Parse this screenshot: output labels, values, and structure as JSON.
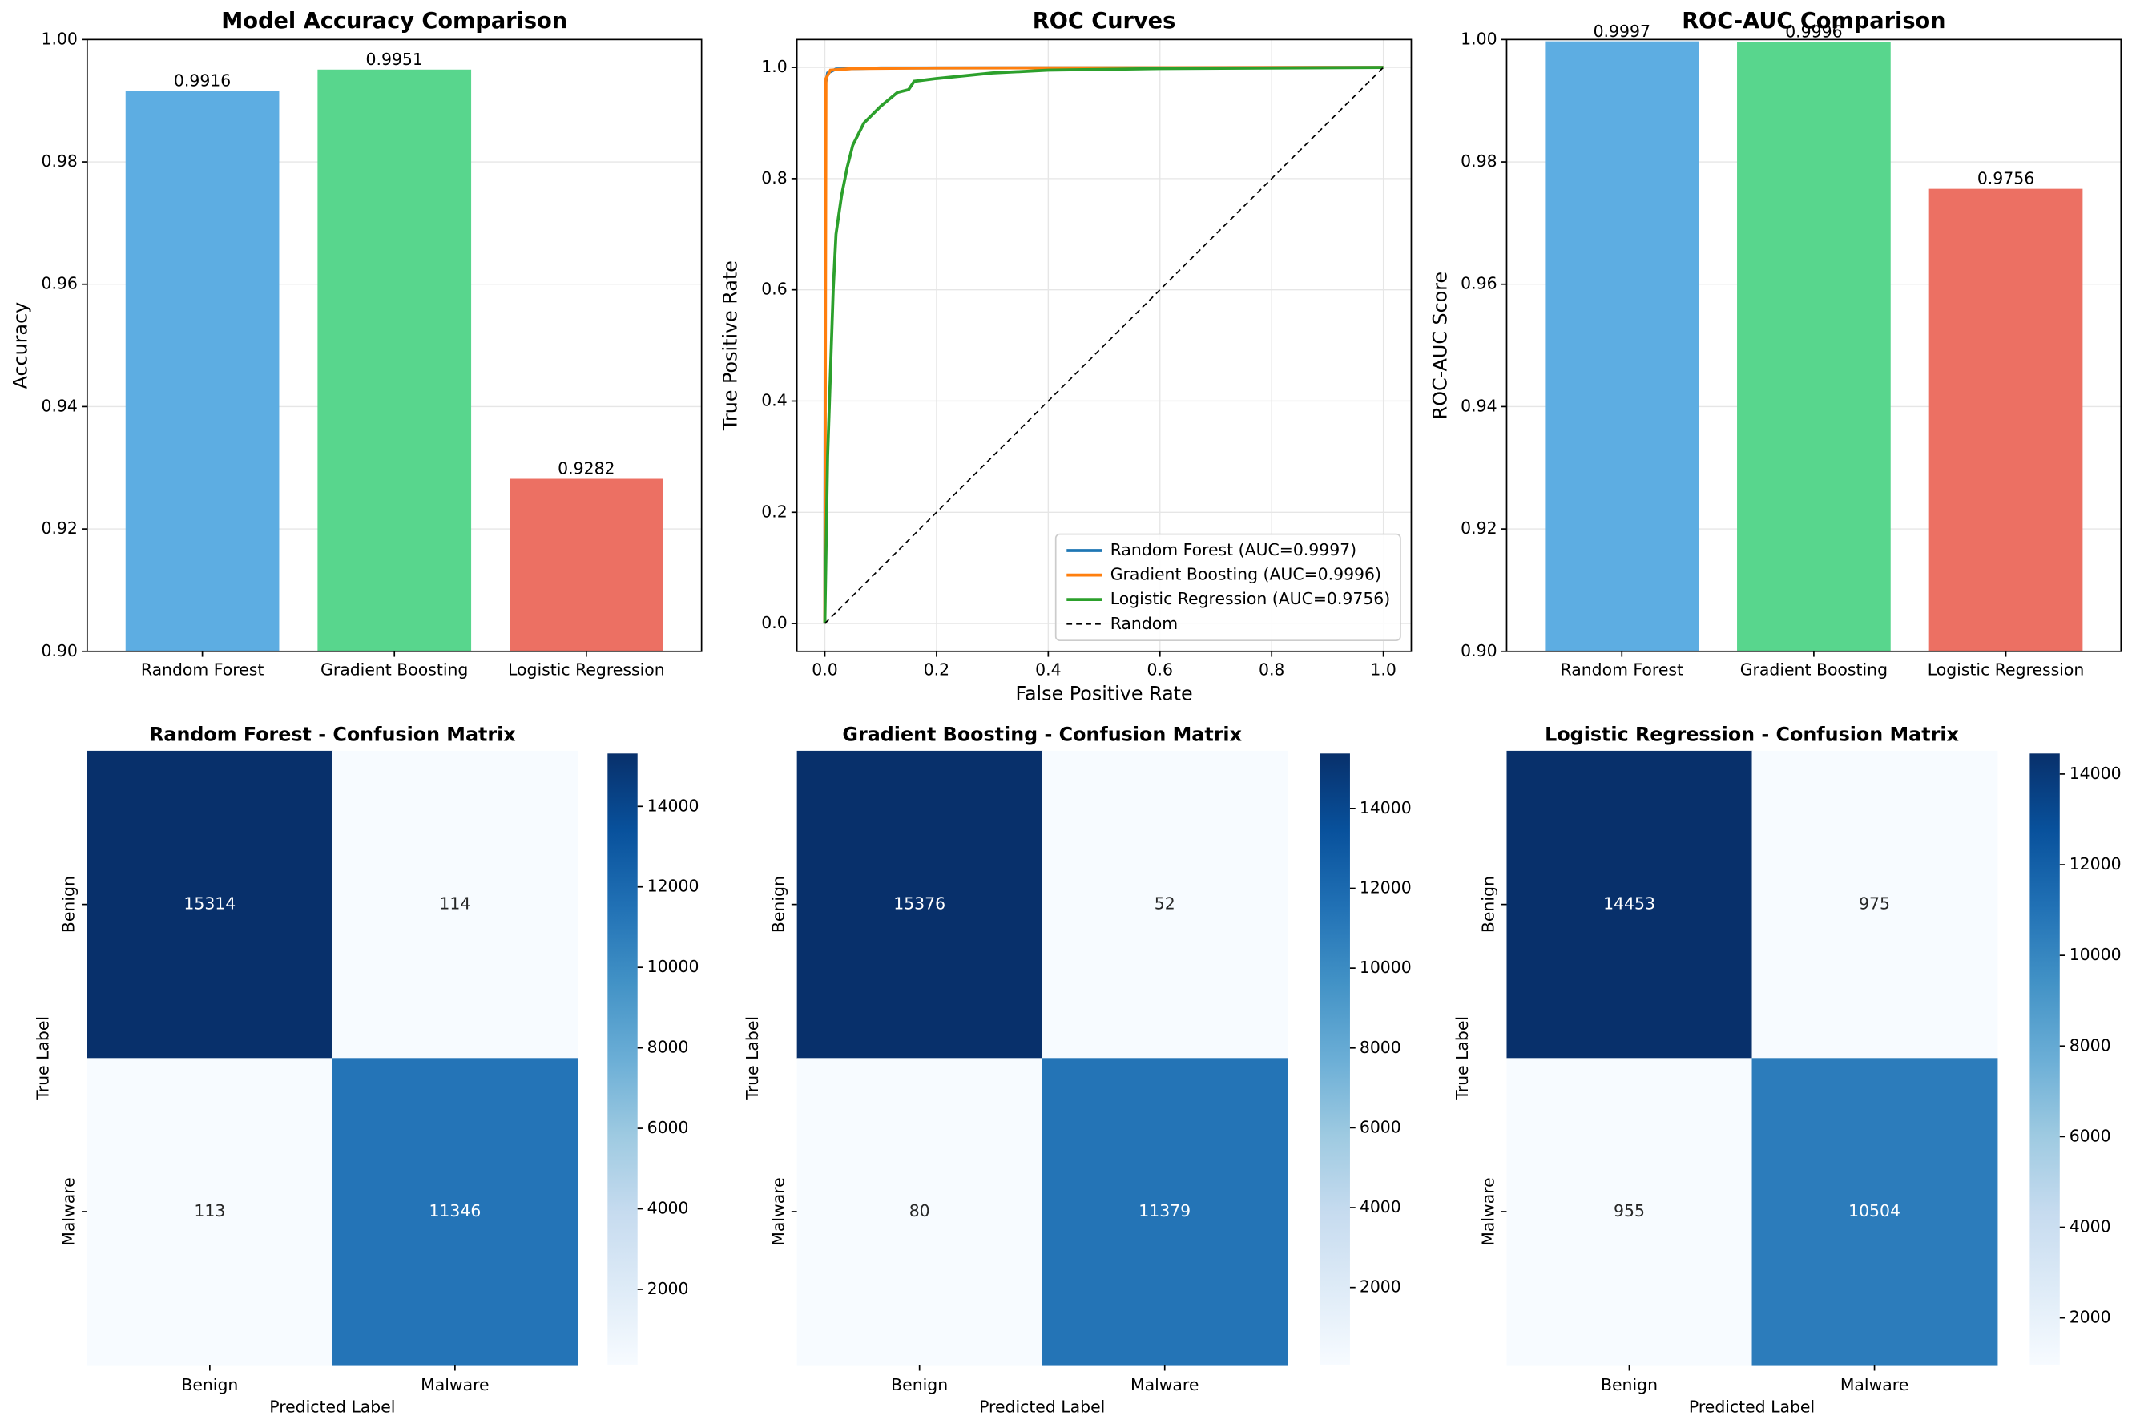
{
  "chart_data": [
    {
      "type": "bar",
      "title": "Model Accuracy Comparison",
      "ylabel": "Accuracy",
      "categories": [
        "Random Forest",
        "Gradient Boosting",
        "Logistic Regression"
      ],
      "values": [
        0.9916,
        0.9951,
        0.9282
      ],
      "colors": [
        "#5dade2",
        "#58d68d",
        "#ec7063"
      ],
      "ylim": [
        0.9,
        1.0
      ],
      "yticks": [
        {
          "value": 0.9,
          "label": "0.90"
        },
        {
          "value": 0.92,
          "label": "0.92"
        },
        {
          "value": 0.94,
          "label": "0.94"
        },
        {
          "value": 0.96,
          "label": "0.96"
        },
        {
          "value": 0.98,
          "label": "0.98"
        },
        {
          "value": 1.0,
          "label": "1.00"
        }
      ],
      "grid": true
    },
    {
      "type": "line",
      "title": "ROC Curves",
      "xlabel": "False Positive Rate",
      "ylabel": "True Positive Rate",
      "series": [
        {
          "name": "Random Forest (AUC=0.9997)",
          "color": "#1f77b4",
          "x": [
            0,
            0.001,
            0.005,
            0.02,
            0.1,
            1
          ],
          "values": [
            0,
            0.97,
            0.99,
            0.997,
            0.999,
            1
          ]
        },
        {
          "name": "Gradient Boosting (AUC=0.9996)",
          "color": "#ff7f0e",
          "x": [
            0,
            0.002,
            0.01,
            0.05,
            0.2,
            1
          ],
          "values": [
            0,
            0.98,
            0.995,
            0.998,
            0.999,
            1
          ]
        },
        {
          "name": "Logistic Regression (AUC=0.9756)",
          "color": "#2ca02c",
          "x": [
            0,
            0.005,
            0.01,
            0.015,
            0.02,
            0.03,
            0.04,
            0.05,
            0.07,
            0.1,
            0.13,
            0.15,
            0.16,
            0.2,
            0.25,
            0.3,
            0.4,
            0.6,
            1
          ],
          "values": [
            0,
            0.3,
            0.45,
            0.6,
            0.7,
            0.77,
            0.82,
            0.86,
            0.9,
            0.93,
            0.955,
            0.96,
            0.975,
            0.98,
            0.985,
            0.99,
            0.995,
            0.998,
            1
          ]
        },
        {
          "name": "Random",
          "color": "#000000",
          "linestyle": "dashed",
          "x": [
            0,
            1
          ],
          "values": [
            0,
            1
          ]
        }
      ],
      "xlim": [
        -0.05,
        1.05
      ],
      "ylim": [
        -0.05,
        1.05
      ],
      "xticks": [
        {
          "value": 0,
          "label": "0.0"
        },
        {
          "value": 0.2,
          "label": "0.2"
        },
        {
          "value": 0.4,
          "label": "0.4"
        },
        {
          "value": 0.6,
          "label": "0.6"
        },
        {
          "value": 0.8,
          "label": "0.8"
        },
        {
          "value": 1,
          "label": "1.0"
        }
      ],
      "yticks": [
        {
          "value": 0,
          "label": "0.0"
        },
        {
          "value": 0.2,
          "label": "0.2"
        },
        {
          "value": 0.4,
          "label": "0.4"
        },
        {
          "value": 0.6,
          "label": "0.6"
        },
        {
          "value": 0.8,
          "label": "0.8"
        },
        {
          "value": 1,
          "label": "1.0"
        }
      ],
      "grid": true,
      "legend": "lower right"
    },
    {
      "type": "bar",
      "title": "ROC-AUC Comparison",
      "ylabel": "ROC-AUC Score",
      "categories": [
        "Random Forest",
        "Gradient Boosting",
        "Logistic Regression"
      ],
      "values": [
        0.9997,
        0.9996,
        0.9756
      ],
      "colors": [
        "#5dade2",
        "#58d68d",
        "#ec7063"
      ],
      "ylim": [
        0.9,
        1.0
      ],
      "yticks": [
        {
          "value": 0.9,
          "label": "0.90"
        },
        {
          "value": 0.92,
          "label": "0.92"
        },
        {
          "value": 0.94,
          "label": "0.94"
        },
        {
          "value": 0.96,
          "label": "0.96"
        },
        {
          "value": 0.98,
          "label": "0.98"
        },
        {
          "value": 1.0,
          "label": "1.00"
        }
      ],
      "grid": true
    },
    {
      "type": "heatmap",
      "title": "Random Forest - Confusion Matrix",
      "xlabel": "Predicted Label",
      "ylabel": "True Label",
      "xcategories": [
        "Benign",
        "Malware"
      ],
      "ycategories": [
        "Benign",
        "Malware"
      ],
      "values": [
        [
          15314,
          114
        ],
        [
          113,
          11346
        ]
      ],
      "cmap": "Blues",
      "clim": [
        113,
        15314
      ],
      "cticks": [
        2000,
        4000,
        6000,
        8000,
        10000,
        12000,
        14000
      ]
    },
    {
      "type": "heatmap",
      "title": "Gradient Boosting - Confusion Matrix",
      "xlabel": "Predicted Label",
      "ylabel": "True Label",
      "xcategories": [
        "Benign",
        "Malware"
      ],
      "ycategories": [
        "Benign",
        "Malware"
      ],
      "values": [
        [
          15376,
          52
        ],
        [
          80,
          11379
        ]
      ],
      "cmap": "Blues",
      "clim": [
        52,
        15376
      ],
      "cticks": [
        2000,
        4000,
        6000,
        8000,
        10000,
        12000,
        14000
      ]
    },
    {
      "type": "heatmap",
      "title": "Logistic Regression - Confusion Matrix",
      "xlabel": "Predicted Label",
      "ylabel": "True Label",
      "xcategories": [
        "Benign",
        "Malware"
      ],
      "ycategories": [
        "Benign",
        "Malware"
      ],
      "values": [
        [
          14453,
          975
        ],
        [
          955,
          10504
        ]
      ],
      "cmap": "Blues",
      "clim": [
        955,
        14453
      ],
      "cticks": [
        2000,
        4000,
        6000,
        8000,
        10000,
        12000,
        14000
      ]
    }
  ]
}
